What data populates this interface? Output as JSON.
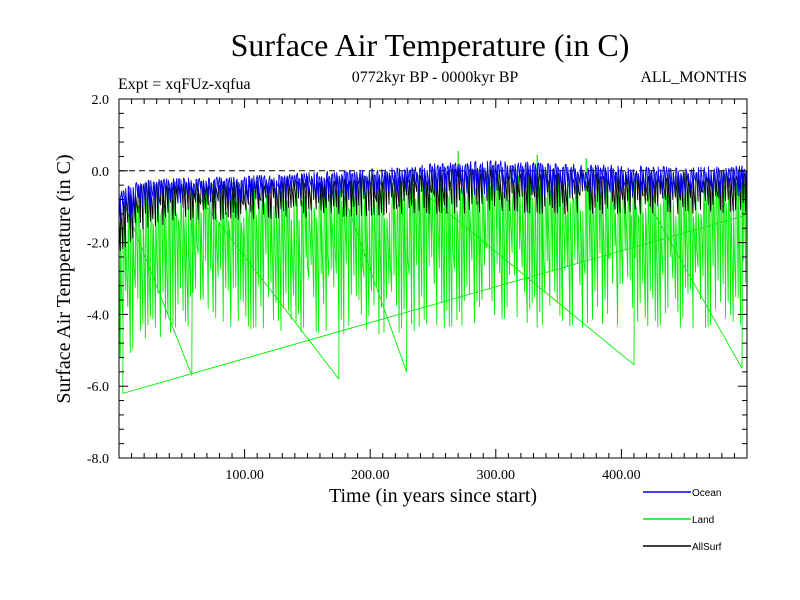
{
  "chart_data": {
    "type": "line",
    "title": "Surface Air Temperature (in C)",
    "subtitle_left": "Expt = xqFUz-xqfua",
    "subtitle_center": "0772kyr BP - 0000kyr BP",
    "subtitle_right": "ALL_MONTHS",
    "xlabel": "Time (in years since start)",
    "ylabel": "Surface Air Temperature (in C)",
    "xlim": [
      0,
      500
    ],
    "ylim": [
      -8.0,
      2.0
    ],
    "x_ticks": [
      100,
      200,
      300,
      400
    ],
    "x_tick_labels": [
      "100.00",
      "200.00",
      "300.00",
      "400.00"
    ],
    "y_ticks": [
      2.0,
      0.0,
      -2.0,
      -4.0,
      -6.0,
      -8.0
    ],
    "y_tick_labels": [
      "2.0",
      "0.0",
      "-2.0",
      "-4.0",
      "-6.0",
      "-8.0"
    ],
    "reference_line_y": 0.0,
    "legend_position": "bottom-right",
    "series": [
      {
        "name": "Land",
        "color": "#00ee00",
        "start": {
          "hi": -0.9,
          "lo": -5.6
        },
        "x": [
          0,
          20,
          50,
          100,
          150,
          200,
          250,
          300,
          350,
          400,
          450,
          500
        ],
        "hi": [
          -0.9,
          -0.6,
          -0.5,
          -0.5,
          -0.4,
          -0.3,
          -0.2,
          -0.1,
          -0.2,
          -0.2,
          -0.3,
          -0.3
        ],
        "lo": [
          -5.6,
          -4.8,
          -4.5,
          -4.4,
          -4.5,
          -4.6,
          -4.4,
          -4.3,
          -4.4,
          -4.3,
          -4.4,
          -4.3
        ],
        "spikes": [
          {
            "x": 270,
            "y": 0.55
          },
          {
            "x": 333,
            "y": 0.45
          },
          {
            "x": 372,
            "y": 0.35
          }
        ],
        "deep_dips": [
          {
            "x": 3,
            "y": -6.2
          },
          {
            "x": 58,
            "y": -5.7
          },
          {
            "x": 175,
            "y": -5.8
          },
          {
            "x": 229,
            "y": -5.6
          },
          {
            "x": 410,
            "y": -5.4
          },
          {
            "x": 496,
            "y": -5.5
          }
        ]
      },
      {
        "name": "AllSurf",
        "color": "#000000",
        "start": {
          "hi": -0.7,
          "lo": -2.3
        },
        "x": [
          0,
          20,
          50,
          100,
          150,
          200,
          250,
          300,
          350,
          400,
          450,
          500
        ],
        "hi": [
          -0.7,
          -0.35,
          -0.3,
          -0.25,
          -0.15,
          -0.1,
          0.05,
          0.1,
          0.0,
          0.0,
          -0.05,
          0.0
        ],
        "lo": [
          -2.3,
          -1.6,
          -1.4,
          -1.35,
          -1.3,
          -1.25,
          -1.2,
          -1.15,
          -1.2,
          -1.2,
          -1.2,
          -1.2
        ]
      },
      {
        "name": "Ocean",
        "color": "#0000ee",
        "start": {
          "hi": -0.5,
          "lo": -1.6
        },
        "x": [
          0,
          20,
          50,
          100,
          150,
          200,
          250,
          300,
          350,
          400,
          450,
          500
        ],
        "hi": [
          -0.5,
          -0.25,
          -0.2,
          -0.15,
          -0.05,
          0.05,
          0.2,
          0.3,
          0.2,
          0.15,
          0.1,
          0.15
        ],
        "lo": [
          -1.6,
          -1.0,
          -0.9,
          -0.85,
          -0.8,
          -0.75,
          -0.7,
          -0.65,
          -0.7,
          -0.7,
          -0.7,
          -0.7
        ]
      }
    ],
    "legend": [
      {
        "name": "Ocean",
        "color": "#0000ee"
      },
      {
        "name": "Land",
        "color": "#00ee00"
      },
      {
        "name": "AllSurf",
        "color": "#000000"
      }
    ]
  }
}
